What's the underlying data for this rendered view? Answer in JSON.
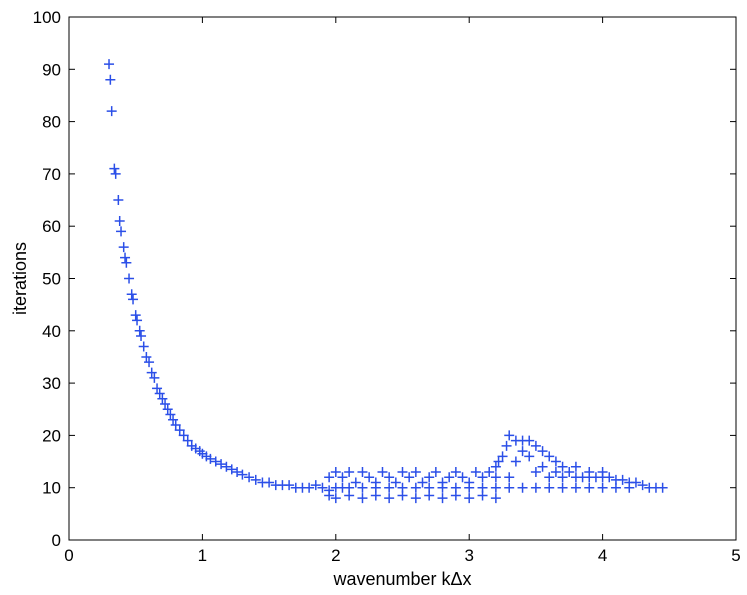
{
  "chart_data": {
    "type": "scatter",
    "xlabel": "wavenumber kΔx",
    "ylabel": "iterations",
    "xlim": [
      0,
      5
    ],
    "ylim": [
      0,
      100
    ],
    "xticks": [
      "0",
      "1",
      "2",
      "3",
      "4",
      "5"
    ],
    "yticks": [
      "0",
      "10",
      "20",
      "30",
      "40",
      "50",
      "60",
      "70",
      "80",
      "90",
      "100"
    ],
    "marker": "plus",
    "color": "#2b4fe8",
    "grid": false,
    "series": [
      {
        "points": [
          [
            0.3,
            91
          ],
          [
            0.31,
            88
          ],
          [
            0.32,
            82
          ],
          [
            0.34,
            71
          ],
          [
            0.35,
            70
          ],
          [
            0.37,
            65
          ],
          [
            0.38,
            61
          ],
          [
            0.39,
            59
          ],
          [
            0.41,
            56
          ],
          [
            0.42,
            54
          ],
          [
            0.43,
            53
          ],
          [
            0.45,
            50
          ],
          [
            0.47,
            47
          ],
          [
            0.48,
            46
          ],
          [
            0.5,
            43
          ],
          [
            0.51,
            42
          ],
          [
            0.53,
            40
          ],
          [
            0.54,
            39
          ],
          [
            0.56,
            37
          ],
          [
            0.58,
            35
          ],
          [
            0.6,
            34
          ],
          [
            0.62,
            32
          ],
          [
            0.64,
            31
          ],
          [
            0.66,
            29
          ],
          [
            0.68,
            28
          ],
          [
            0.7,
            27
          ],
          [
            0.72,
            26
          ],
          [
            0.74,
            25
          ],
          [
            0.76,
            24
          ],
          [
            0.78,
            23
          ],
          [
            0.8,
            22
          ],
          [
            0.83,
            21
          ],
          [
            0.86,
            20
          ],
          [
            0.89,
            19
          ],
          [
            0.92,
            18
          ],
          [
            0.95,
            17.5
          ],
          [
            0.98,
            17
          ],
          [
            1.0,
            16.5
          ],
          [
            1.03,
            16
          ],
          [
            1.06,
            15.5
          ],
          [
            1.1,
            15
          ],
          [
            1.14,
            14.5
          ],
          [
            1.18,
            14
          ],
          [
            1.22,
            13.5
          ],
          [
            1.26,
            13
          ],
          [
            1.3,
            12.5
          ],
          [
            1.35,
            12
          ],
          [
            1.4,
            11.5
          ],
          [
            1.45,
            11
          ],
          [
            1.5,
            11
          ],
          [
            1.55,
            10.5
          ],
          [
            1.6,
            10.5
          ],
          [
            1.65,
            10.5
          ],
          [
            1.7,
            10
          ],
          [
            1.75,
            10
          ],
          [
            1.8,
            10
          ],
          [
            1.85,
            10.5
          ],
          [
            1.9,
            10
          ],
          [
            1.95,
            9.5
          ],
          [
            2.0,
            10
          ],
          [
            2.05,
            10
          ],
          [
            2.1,
            10
          ],
          [
            2.2,
            10
          ],
          [
            2.3,
            10
          ],
          [
            2.4,
            10
          ],
          [
            2.5,
            10
          ],
          [
            2.6,
            10
          ],
          [
            2.7,
            10
          ],
          [
            2.8,
            10
          ],
          [
            2.9,
            10
          ],
          [
            3.0,
            10
          ],
          [
            3.1,
            10
          ],
          [
            3.2,
            10
          ],
          [
            1.95,
            12
          ],
          [
            2.0,
            13
          ],
          [
            2.05,
            12
          ],
          [
            2.1,
            13
          ],
          [
            2.15,
            11
          ],
          [
            2.2,
            13
          ],
          [
            2.25,
            12
          ],
          [
            2.3,
            11
          ],
          [
            2.35,
            13
          ],
          [
            2.4,
            12
          ],
          [
            2.45,
            11
          ],
          [
            2.5,
            13
          ],
          [
            2.55,
            12
          ],
          [
            2.6,
            13
          ],
          [
            2.65,
            11
          ],
          [
            2.7,
            12
          ],
          [
            2.75,
            13
          ],
          [
            2.8,
            11
          ],
          [
            2.85,
            12
          ],
          [
            2.9,
            13
          ],
          [
            2.95,
            12
          ],
          [
            3.0,
            11
          ],
          [
            3.05,
            13
          ],
          [
            3.1,
            12
          ],
          [
            3.15,
            13
          ],
          [
            3.2,
            12
          ],
          [
            1.95,
            8.5
          ],
          [
            2.0,
            8
          ],
          [
            2.1,
            8.5
          ],
          [
            2.2,
            8
          ],
          [
            2.3,
            8.5
          ],
          [
            2.4,
            8
          ],
          [
            2.5,
            8.5
          ],
          [
            2.6,
            8
          ],
          [
            2.7,
            8.5
          ],
          [
            2.8,
            8
          ],
          [
            2.9,
            8.5
          ],
          [
            3.0,
            8
          ],
          [
            3.1,
            8.5
          ],
          [
            3.2,
            8
          ],
          [
            3.2,
            14
          ],
          [
            3.22,
            15
          ],
          [
            3.25,
            16
          ],
          [
            3.28,
            18
          ],
          [
            3.3,
            20
          ],
          [
            3.35,
            19
          ],
          [
            3.4,
            19
          ],
          [
            3.45,
            19
          ],
          [
            3.5,
            18
          ],
          [
            3.55,
            17
          ],
          [
            3.6,
            16
          ],
          [
            3.65,
            15
          ],
          [
            3.7,
            14
          ],
          [
            3.8,
            14
          ],
          [
            3.9,
            13
          ],
          [
            4.0,
            13
          ],
          [
            3.3,
            12
          ],
          [
            3.35,
            15
          ],
          [
            3.4,
            17
          ],
          [
            3.45,
            16
          ],
          [
            3.5,
            13
          ],
          [
            3.55,
            14
          ],
          [
            3.6,
            12
          ],
          [
            3.65,
            13
          ],
          [
            3.7,
            12
          ],
          [
            3.75,
            13
          ],
          [
            3.8,
            12
          ],
          [
            3.85,
            12
          ],
          [
            3.9,
            12
          ],
          [
            3.95,
            12
          ],
          [
            4.0,
            12
          ],
          [
            4.05,
            12
          ],
          [
            4.1,
            11.5
          ],
          [
            4.15,
            11.5
          ],
          [
            4.2,
            11
          ],
          [
            4.25,
            11
          ],
          [
            4.3,
            10.5
          ],
          [
            4.35,
            10
          ],
          [
            4.4,
            10
          ],
          [
            4.45,
            10
          ],
          [
            3.3,
            10
          ],
          [
            3.4,
            10
          ],
          [
            3.5,
            10
          ],
          [
            3.6,
            10
          ],
          [
            3.7,
            10
          ],
          [
            3.8,
            10
          ],
          [
            3.9,
            10
          ],
          [
            4.0,
            10
          ],
          [
            4.1,
            10
          ],
          [
            4.2,
            10
          ]
        ]
      }
    ]
  }
}
